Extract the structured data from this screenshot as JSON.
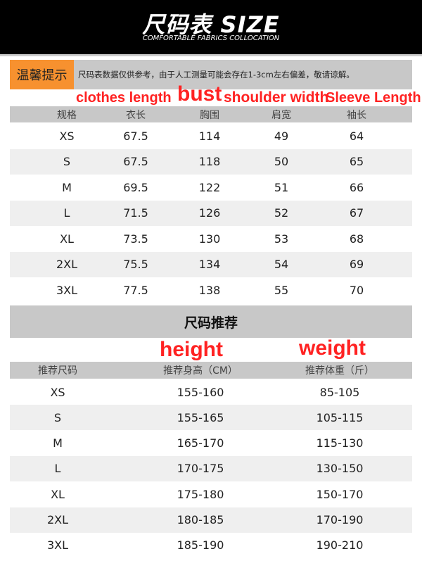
{
  "header": {
    "title": "尺码表 SIZE",
    "subtitle": "COMFORTABLE FABRICS COLLOCATION"
  },
  "tip": {
    "label": "温馨提示",
    "message": "尺码表数据仅供参考，由于人工测量可能会存在1-3cm左右偏差，敬请谅解。"
  },
  "annotations": {
    "clothes_length": "clothes length",
    "shoulder_width": "shoulder width",
    "bust": "bust",
    "sleeve_length": "Sleeve Length",
    "height": "height",
    "weight": "weight"
  },
  "size_table": {
    "headers": [
      "规格",
      "衣长",
      "胸围",
      "肩宽",
      "袖长"
    ],
    "rows": [
      [
        "XS",
        "67.5",
        "114",
        "49",
        "64"
      ],
      [
        "S",
        "67.5",
        "118",
        "50",
        "65"
      ],
      [
        "M",
        "69.5",
        "122",
        "51",
        "66"
      ],
      [
        "L",
        "71.5",
        "126",
        "52",
        "67"
      ],
      [
        "XL",
        "73.5",
        "130",
        "53",
        "68"
      ],
      [
        "2XL",
        "75.5",
        "134",
        "54",
        "69"
      ],
      [
        "3XL",
        "77.5",
        "138",
        "55",
        "70"
      ]
    ]
  },
  "recommend": {
    "title": "尺码推荐",
    "headers": [
      "推荐尺码",
      "推荐身高（CM）",
      "推荐体重（斤）"
    ],
    "rows": [
      [
        "XS",
        "155-160",
        "85-105"
      ],
      [
        "S",
        "155-165",
        "105-115"
      ],
      [
        "M",
        "165-170",
        "115-130"
      ],
      [
        "L",
        "170-175",
        "130-150"
      ],
      [
        "XL",
        "175-180",
        "150-170"
      ],
      [
        "2XL",
        "180-185",
        "170-190"
      ],
      [
        "3XL",
        "185-190",
        "190-210"
      ]
    ]
  },
  "colors": {
    "accent": "#f7912f",
    "annotation": "#ff2222",
    "band": "#c8c8c8"
  }
}
